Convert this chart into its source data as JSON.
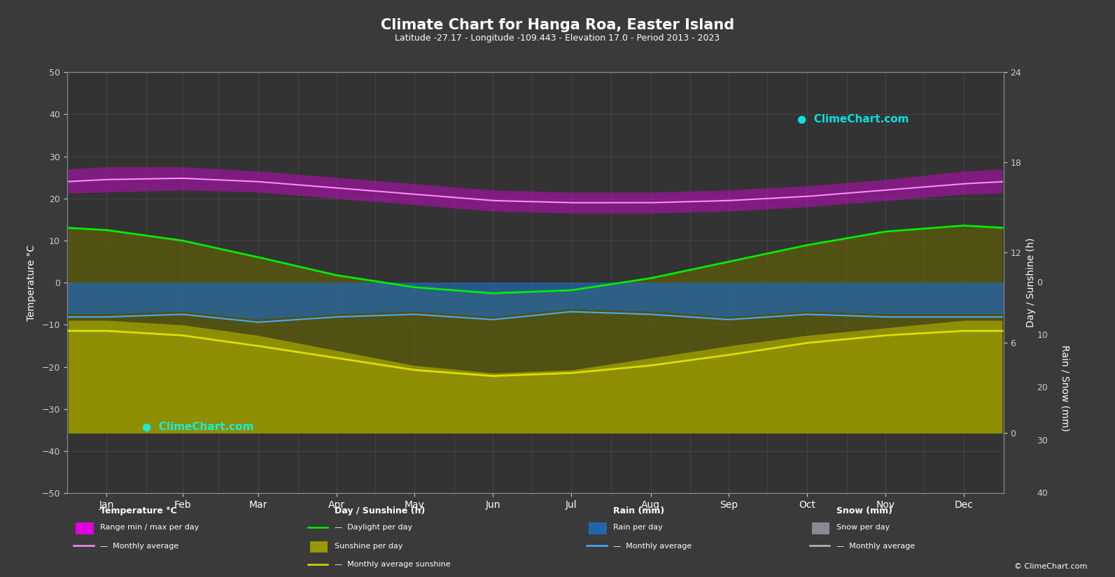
{
  "title": "Climate Chart for Hanga Roa, Easter Island",
  "subtitle": "Latitude -27.17 - Longitude -109.443 - Elevation 17.0 - Period 2013 - 2023",
  "background_color": "#3a3a3a",
  "plot_bg_color": "#333333",
  "grid_color": "#555555",
  "months": [
    "Jan",
    "Feb",
    "Mar",
    "Apr",
    "May",
    "Jun",
    "Jul",
    "Aug",
    "Sep",
    "Oct",
    "Nov",
    "Dec"
  ],
  "days_per_month": [
    31,
    28,
    31,
    30,
    31,
    30,
    31,
    31,
    30,
    31,
    30,
    31
  ],
  "temp_ylim": [
    -50,
    50
  ],
  "temp_yticks": [
    -50,
    -40,
    -30,
    -20,
    -10,
    0,
    10,
    20,
    30,
    40,
    50
  ],
  "sunshine_ylim": [
    -4,
    24
  ],
  "sunshine_yticks": [
    0,
    6,
    12,
    18,
    24
  ],
  "rain_ylim": [
    40,
    0
  ],
  "rain_yticks": [
    40,
    30,
    20,
    10,
    0
  ],
  "temp_max_daily": [
    27.5,
    27.5,
    26.5,
    25.0,
    23.5,
    22.0,
    21.5,
    21.5,
    22.0,
    23.0,
    24.5,
    26.5
  ],
  "temp_min_daily": [
    21.5,
    22.0,
    21.5,
    20.0,
    18.5,
    17.0,
    16.5,
    16.5,
    17.0,
    18.0,
    19.5,
    21.0
  ],
  "temp_avg_monthly": [
    24.5,
    24.8,
    24.0,
    22.5,
    21.0,
    19.5,
    19.0,
    19.0,
    19.5,
    20.5,
    22.0,
    23.5
  ],
  "daylight_hours": [
    13.5,
    12.8,
    11.7,
    10.5,
    9.7,
    9.3,
    9.5,
    10.3,
    11.4,
    12.5,
    13.4,
    13.8
  ],
  "sunshine_hours_daily": [
    7.5,
    7.2,
    6.5,
    5.5,
    4.5,
    4.0,
    4.2,
    5.0,
    5.8,
    6.5,
    7.0,
    7.5
  ],
  "sunshine_avg_monthly": [
    6.8,
    6.5,
    5.8,
    5.0,
    4.2,
    3.8,
    4.0,
    4.5,
    5.2,
    6.0,
    6.5,
    6.8
  ],
  "rain_daily_mm": [
    6.0,
    5.5,
    7.0,
    6.0,
    5.5,
    6.5,
    5.0,
    5.5,
    6.5,
    5.5,
    6.0,
    6.0
  ],
  "rain_avg_monthly_mm": [
    6.5,
    6.0,
    7.5,
    6.5,
    6.0,
    7.0,
    5.5,
    6.0,
    7.0,
    6.0,
    6.5,
    6.5
  ],
  "temp_range_color": "#dd00dd",
  "temp_avg_line_color": "#ff88ff",
  "daylight_line_color": "#00ee00",
  "sunshine_fill_color": "#999900",
  "sunshine_avg_line_color": "#dddd00",
  "rain_fill_color": "#2266aa",
  "rain_avg_line_color": "#44aaff",
  "snow_fill_color": "#888899",
  "snow_avg_line_color": "#bbbbcc",
  "text_color": "#ffffff",
  "tick_color": "#cccccc",
  "axis_color": "#888888",
  "sunshine_scale_factor": 2.08333,
  "rain_scale_factor": -0.25
}
